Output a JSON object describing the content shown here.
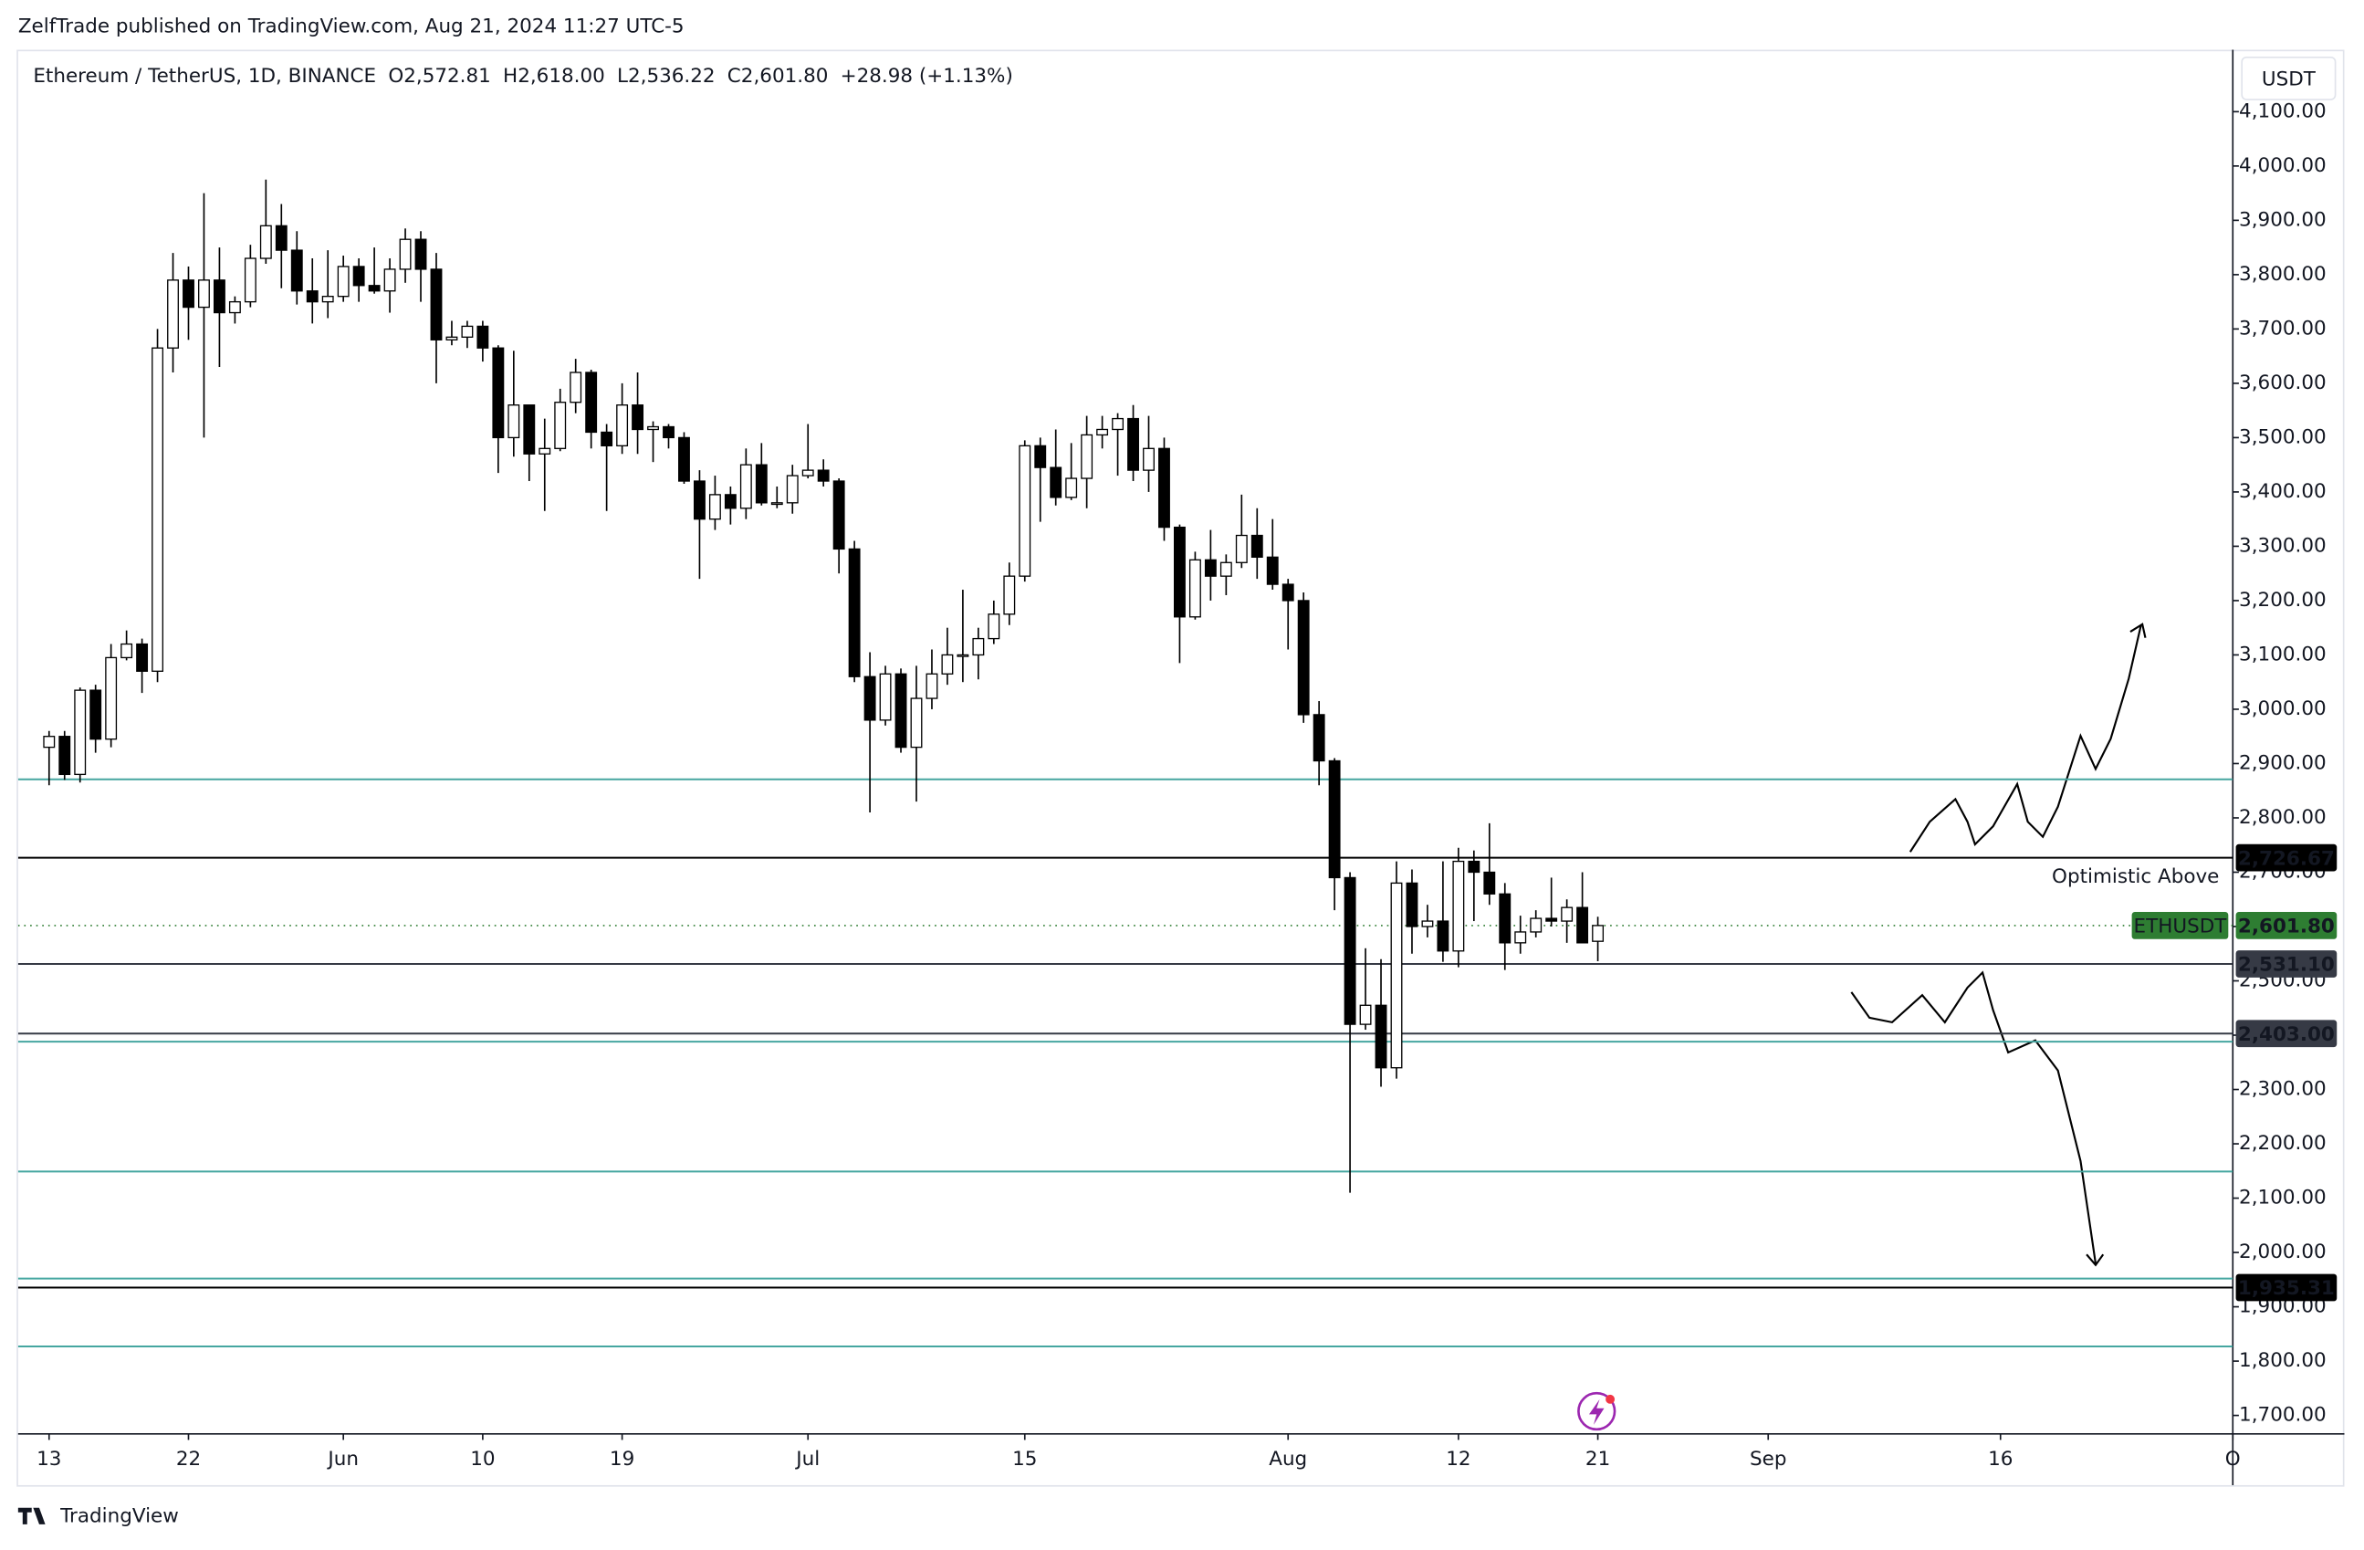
{
  "header": "ZelfTrade published on TradingView.com, Aug 21, 2024 11:27 UTC-5",
  "footer": "TradingView",
  "chart_data": {
    "type": "candlestick",
    "legend": [
      "Ethereum / TetherUS, 1D, BINANCE",
      "O2,572.81",
      "H2,618.00",
      "L2,536.22",
      "C2,601.80",
      "+28.98 (+1.13%)"
    ],
    "currency": "USDT",
    "x": [
      "2024-05-13",
      "2024-05-14",
      "2024-05-15",
      "2024-05-16",
      "2024-05-17",
      "2024-05-18",
      "2024-05-19",
      "2024-05-20",
      "2024-05-21",
      "2024-05-22",
      "2024-05-23",
      "2024-05-24",
      "2024-05-25",
      "2024-05-26",
      "2024-05-27",
      "2024-05-28",
      "2024-05-29",
      "2024-05-30",
      "2024-05-31",
      "2024-06-01",
      "2024-06-02",
      "2024-06-03",
      "2024-06-04",
      "2024-06-05",
      "2024-06-06",
      "2024-06-07",
      "2024-06-08",
      "2024-06-09",
      "2024-06-10",
      "2024-06-11",
      "2024-06-12",
      "2024-06-13",
      "2024-06-14",
      "2024-06-15",
      "2024-06-16",
      "2024-06-17",
      "2024-06-18",
      "2024-06-19",
      "2024-06-20",
      "2024-06-21",
      "2024-06-22",
      "2024-06-23",
      "2024-06-24",
      "2024-06-25",
      "2024-06-26",
      "2024-06-27",
      "2024-06-28",
      "2024-06-29",
      "2024-06-30",
      "2024-07-01",
      "2024-07-02",
      "2024-07-03",
      "2024-07-04",
      "2024-07-05",
      "2024-07-06",
      "2024-07-07",
      "2024-07-08",
      "2024-07-09",
      "2024-07-10",
      "2024-07-11",
      "2024-07-12",
      "2024-07-13",
      "2024-07-14",
      "2024-07-15",
      "2024-07-16",
      "2024-07-17",
      "2024-07-18",
      "2024-07-19",
      "2024-07-20",
      "2024-07-21",
      "2024-07-22",
      "2024-07-23",
      "2024-07-24",
      "2024-07-25",
      "2024-07-26",
      "2024-07-27",
      "2024-07-28",
      "2024-07-29",
      "2024-07-30",
      "2024-07-31",
      "2024-08-01",
      "2024-08-02",
      "2024-08-03",
      "2024-08-04",
      "2024-08-05",
      "2024-08-06",
      "2024-08-07",
      "2024-08-08",
      "2024-08-09",
      "2024-08-10",
      "2024-08-11",
      "2024-08-12",
      "2024-08-13",
      "2024-08-14",
      "2024-08-15",
      "2024-08-16",
      "2024-08-17",
      "2024-08-18",
      "2024-08-19",
      "2024-08-20",
      "2024-08-21"
    ],
    "ohlc": [
      [
        2930,
        2960,
        2860,
        2950
      ],
      [
        2950,
        2960,
        2870,
        2880
      ],
      [
        2880,
        3040,
        2865,
        3035
      ],
      [
        3035,
        3045,
        2920,
        2945
      ],
      [
        2945,
        3120,
        2930,
        3095
      ],
      [
        3095,
        3145,
        3090,
        3120
      ],
      [
        3120,
        3130,
        3030,
        3070
      ],
      [
        3070,
        3700,
        3050,
        3665
      ],
      [
        3665,
        3840,
        3620,
        3790
      ],
      [
        3790,
        3815,
        3680,
        3740
      ],
      [
        3740,
        3950,
        3500,
        3790
      ],
      [
        3790,
        3850,
        3630,
        3730
      ],
      [
        3730,
        3760,
        3710,
        3750
      ],
      [
        3750,
        3855,
        3740,
        3830
      ],
      [
        3830,
        3975,
        3820,
        3890
      ],
      [
        3890,
        3930,
        3775,
        3845
      ],
      [
        3845,
        3880,
        3745,
        3770
      ],
      [
        3770,
        3830,
        3710,
        3750
      ],
      [
        3750,
        3845,
        3720,
        3760
      ],
      [
        3760,
        3835,
        3750,
        3815
      ],
      [
        3815,
        3830,
        3750,
        3780
      ],
      [
        3780,
        3850,
        3765,
        3770
      ],
      [
        3770,
        3830,
        3730,
        3810
      ],
      [
        3810,
        3885,
        3785,
        3865
      ],
      [
        3865,
        3880,
        3750,
        3810
      ],
      [
        3810,
        3840,
        3600,
        3680
      ],
      [
        3680,
        3715,
        3670,
        3685
      ],
      [
        3685,
        3715,
        3665,
        3705
      ],
      [
        3705,
        3715,
        3640,
        3665
      ],
      [
        3665,
        3670,
        3435,
        3500
      ],
      [
        3500,
        3660,
        3465,
        3560
      ],
      [
        3560,
        3560,
        3420,
        3470
      ],
      [
        3470,
        3535,
        3365,
        3480
      ],
      [
        3480,
        3590,
        3475,
        3565
      ],
      [
        3565,
        3645,
        3545,
        3620
      ],
      [
        3620,
        3625,
        3480,
        3510
      ],
      [
        3510,
        3525,
        3365,
        3485
      ],
      [
        3485,
        3600,
        3470,
        3560
      ],
      [
        3560,
        3620,
        3470,
        3515
      ],
      [
        3515,
        3530,
        3455,
        3520
      ],
      [
        3520,
        3525,
        3480,
        3500
      ],
      [
        3500,
        3510,
        3415,
        3420
      ],
      [
        3420,
        3440,
        3240,
        3350
      ],
      [
        3350,
        3430,
        3330,
        3395
      ],
      [
        3395,
        3410,
        3340,
        3370
      ],
      [
        3370,
        3480,
        3350,
        3450
      ],
      [
        3450,
        3490,
        3375,
        3380
      ],
      [
        3380,
        3410,
        3370,
        3380
      ],
      [
        3380,
        3450,
        3360,
        3430
      ],
      [
        3430,
        3525,
        3425,
        3440
      ],
      [
        3440,
        3460,
        3410,
        3420
      ],
      [
        3420,
        3425,
        3250,
        3295
      ],
      [
        3295,
        3310,
        3050,
        3060
      ],
      [
        3060,
        3105,
        2810,
        2980
      ],
      [
        2980,
        3080,
        2970,
        3065
      ],
      [
        3065,
        3075,
        2920,
        2930
      ],
      [
        2930,
        3080,
        2830,
        3020
      ],
      [
        3020,
        3110,
        3000,
        3065
      ],
      [
        3065,
        3150,
        3045,
        3100
      ],
      [
        3100,
        3220,
        3050,
        3100
      ],
      [
        3100,
        3150,
        3055,
        3130
      ],
      [
        3130,
        3200,
        3120,
        3175
      ],
      [
        3175,
        3270,
        3155,
        3245
      ],
      [
        3245,
        3495,
        3235,
        3485
      ],
      [
        3485,
        3500,
        3345,
        3445
      ],
      [
        3445,
        3515,
        3375,
        3390
      ],
      [
        3390,
        3490,
        3385,
        3425
      ],
      [
        3425,
        3540,
        3370,
        3505
      ],
      [
        3505,
        3540,
        3480,
        3515
      ],
      [
        3515,
        3545,
        3430,
        3535
      ],
      [
        3535,
        3560,
        3420,
        3440
      ],
      [
        3440,
        3540,
        3400,
        3480
      ],
      [
        3480,
        3500,
        3310,
        3335
      ],
      [
        3335,
        3340,
        3085,
        3170
      ],
      [
        3170,
        3290,
        3165,
        3275
      ],
      [
        3275,
        3330,
        3200,
        3245
      ],
      [
        3245,
        3285,
        3210,
        3270
      ],
      [
        3270,
        3395,
        3260,
        3320
      ],
      [
        3320,
        3370,
        3240,
        3280
      ],
      [
        3280,
        3350,
        3220,
        3230
      ],
      [
        3230,
        3240,
        3110,
        3200
      ],
      [
        3200,
        3215,
        2975,
        2990
      ],
      [
        2990,
        3015,
        2860,
        2905
      ],
      [
        2905,
        2910,
        2630,
        2690
      ],
      [
        2690,
        2700,
        2110,
        2420
      ],
      [
        2420,
        2560,
        2410,
        2455
      ],
      [
        2455,
        2540,
        2305,
        2340
      ],
      [
        2340,
        2720,
        2320,
        2680
      ],
      [
        2680,
        2705,
        2550,
        2600
      ],
      [
        2600,
        2640,
        2580,
        2610
      ],
      [
        2610,
        2720,
        2535,
        2555
      ],
      [
        2555,
        2745,
        2525,
        2720
      ],
      [
        2720,
        2740,
        2610,
        2700
      ],
      [
        2700,
        2790,
        2640,
        2660
      ],
      [
        2660,
        2680,
        2520,
        2570
      ],
      [
        2570,
        2620,
        2550,
        2590
      ],
      [
        2590,
        2630,
        2580,
        2615
      ],
      [
        2615,
        2690,
        2600,
        2610
      ],
      [
        2610,
        2650,
        2570,
        2635
      ],
      [
        2635,
        2700,
        2570,
        2570
      ],
      [
        2572.81,
        2618.0,
        2536.22,
        2601.8
      ]
    ],
    "up_color": "#ffffff",
    "down_color": "#000000",
    "border_color": "#000000",
    "xlim": [
      "2024-05-11",
      "2024-10-01"
    ],
    "xticks": [
      {
        "value": "2024-05-13",
        "label": "13"
      },
      {
        "value": "2024-05-22",
        "label": "22"
      },
      {
        "value": "2024-06-01",
        "label": "Jun"
      },
      {
        "value": "2024-06-10",
        "label": "10"
      },
      {
        "value": "2024-06-19",
        "label": "19"
      },
      {
        "value": "2024-07-01",
        "label": "Jul"
      },
      {
        "value": "2024-07-15",
        "label": "15"
      },
      {
        "value": "2024-08-01",
        "label": "Aug"
      },
      {
        "value": "2024-08-12",
        "label": "12"
      },
      {
        "value": "2024-08-21",
        "label": "21"
      },
      {
        "value": "2024-09-01",
        "label": "Sep"
      },
      {
        "value": "2024-09-16",
        "label": "16"
      },
      {
        "value": "2024-10-01",
        "label": "O"
      }
    ],
    "ylim": [
      1666,
      4214
    ],
    "yticks": [
      {
        "value": 1700,
        "label": "1,700.00"
      },
      {
        "value": 1800,
        "label": "1,800.00"
      },
      {
        "value": 1900,
        "label": "1,900.00"
      },
      {
        "value": 2000,
        "label": "2,000.00"
      },
      {
        "value": 2100,
        "label": "2,100.00"
      },
      {
        "value": 2200,
        "label": "2,200.00"
      },
      {
        "value": 2300,
        "label": "2,300.00"
      },
      {
        "value": 2400,
        "label": "2,400.00"
      },
      {
        "value": 2500,
        "label": "2,500.00"
      },
      {
        "value": 2600,
        "label": "2,600.00"
      },
      {
        "value": 2700,
        "label": "2,700.00"
      },
      {
        "value": 2800,
        "label": "2,800.00"
      },
      {
        "value": 2900,
        "label": "2,900.00"
      },
      {
        "value": 3000,
        "label": "3,000.00"
      },
      {
        "value": 3100,
        "label": "3,100.00"
      },
      {
        "value": 3200,
        "label": "3,200.00"
      },
      {
        "value": 3300,
        "label": "3,300.00"
      },
      {
        "value": 3400,
        "label": "3,400.00"
      },
      {
        "value": 3500,
        "label": "3,500.00"
      },
      {
        "value": 3600,
        "label": "3,600.00"
      },
      {
        "value": 3700,
        "label": "3,700.00"
      },
      {
        "value": 3800,
        "label": "3,800.00"
      },
      {
        "value": 3900,
        "label": "3,900.00"
      },
      {
        "value": 4000,
        "label": "4,000.00"
      },
      {
        "value": 4100,
        "label": "4,100.00"
      }
    ],
    "grid": false,
    "zone_lines": [
      2871,
      2388,
      2149,
      1952,
      1827
    ],
    "zone_color": "#45a6a0",
    "levels": [
      {
        "value": 2726.67,
        "label": "2,726.67",
        "color": "#000000"
      },
      {
        "value": 2531.1,
        "label": "2,531.10",
        "color": "#363a45"
      },
      {
        "value": 2403.0,
        "label": "2,403.00",
        "color": "#363a45"
      },
      {
        "value": 1935.31,
        "label": "1,935.31",
        "color": "#000000"
      }
    ],
    "last_price": {
      "symbol": "ETHUSDT",
      "value": 2601.8,
      "label": "2,601.80",
      "color": "#2e7d32"
    },
    "annotation": {
      "text": "Optimistic Above",
      "value": 2726.67,
      "color": "#1e8a7a"
    }
  }
}
